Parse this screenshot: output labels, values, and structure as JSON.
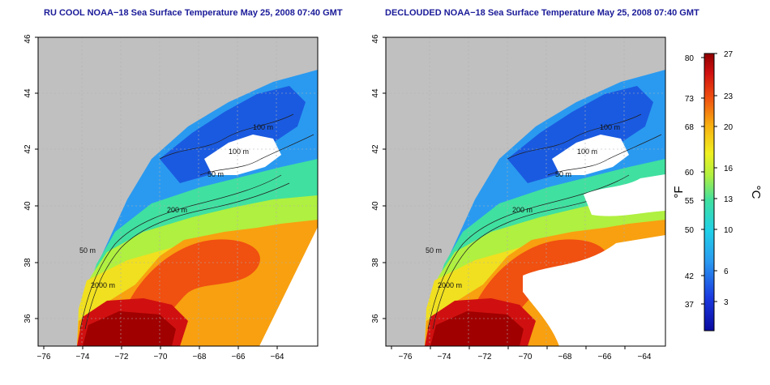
{
  "panels": [
    {
      "title": "RU COOL NOAA−18 Sea Surface Temperature May 25, 2008 07:40 GMT",
      "x_ticks": [
        "−76",
        "−74",
        "−72",
        "−70",
        "−68",
        "−66",
        "−64"
      ],
      "y_ticks": [
        "36",
        "38",
        "40",
        "42",
        "44",
        "46"
      ],
      "contours": [
        "100 m",
        "100 m",
        "50 m",
        "200 m",
        "50 m",
        "2000 m"
      ]
    },
    {
      "title": "DECLOUDED NOAA−18 Sea Surface Temperature May 25, 2008 07:40 GMT",
      "x_ticks": [
        "−76",
        "−74",
        "−72",
        "−70",
        "−68",
        "−66",
        "−64"
      ],
      "y_ticks": [
        "36",
        "38",
        "40",
        "42",
        "44",
        "46"
      ],
      "contours": [
        "100 m",
        "100 m",
        "50 m",
        "200 m",
        "50 m",
        "2000 m"
      ]
    }
  ],
  "colorbar": {
    "f_label": "°F",
    "c_label": "°C",
    "f_ticks": [
      "80",
      "73",
      "68",
      "60",
      "55",
      "50",
      "42",
      "37"
    ],
    "c_ticks": [
      "27",
      "23",
      "20",
      "16",
      "13",
      "10",
      "6",
      "3"
    ]
  },
  "colors": {
    "land": "#c0c0c0",
    "cloud": "#ffffff",
    "title": "#1a1a99"
  }
}
